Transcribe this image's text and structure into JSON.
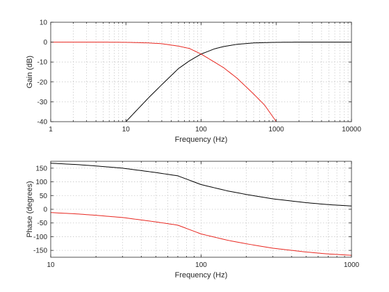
{
  "chart_data": [
    {
      "type": "line",
      "xscale": "log",
      "xlim": [
        1,
        10000
      ],
      "ylim": [
        -40,
        10
      ],
      "xlabel": "Frequency (Hz)",
      "ylabel": "Gain (dB)",
      "xticks": [
        1,
        10,
        100,
        1000,
        10000
      ],
      "xtick_labels": [
        "1",
        "10",
        "100",
        "1000",
        "10000"
      ],
      "yticks": [
        -40,
        -30,
        -20,
        -10,
        0,
        10
      ],
      "ytick_labels": [
        "-40",
        "-30",
        "-20",
        "-10",
        "0",
        "10"
      ],
      "grid": true,
      "series": [
        {
          "color": "#000000",
          "x": [
            10,
            20,
            30,
            50,
            70,
            100,
            150,
            200,
            300,
            500,
            1000,
            2000,
            5000,
            10000
          ],
          "values": [
            -40,
            -28,
            -21.4,
            -13.3,
            -9.4,
            -6.0,
            -3.4,
            -2.2,
            -1.1,
            -0.4,
            -0.1,
            0,
            0,
            0
          ]
        },
        {
          "color": "#e8261f",
          "x": [
            1,
            2,
            5,
            10,
            20,
            30,
            50,
            70,
            100,
            150,
            200,
            300,
            500,
            700,
            1000
          ],
          "values": [
            0,
            0,
            0,
            -0.1,
            -0.4,
            -0.8,
            -2.0,
            -3.2,
            -6.0,
            -10.0,
            -12.9,
            -18.1,
            -26.1,
            -31.7,
            -40
          ]
        }
      ]
    },
    {
      "type": "line",
      "xscale": "log",
      "xlim": [
        10,
        1000
      ],
      "ylim": [
        -175,
        175
      ],
      "xlabel": "Frequency (Hz)",
      "ylabel": "Phase (degrees)",
      "xticks": [
        10,
        100,
        1000
      ],
      "xtick_labels": [
        "10",
        "100",
        "1000"
      ],
      "yticks": [
        -150,
        -100,
        -50,
        0,
        50,
        100,
        150
      ],
      "ytick_labels": [
        "-150",
        "-100",
        "-50",
        "0",
        "50",
        "100",
        "150"
      ],
      "grid": true,
      "series": [
        {
          "color": "#000000",
          "x": [
            10,
            15,
            20,
            30,
            40,
            50,
            70,
            100,
            150,
            200,
            300,
            500,
            700,
            1000
          ],
          "values": [
            168,
            163,
            158,
            150,
            141,
            134,
            122,
            90,
            67,
            54,
            38,
            24,
            17,
            12
          ]
        },
        {
          "color": "#e8261f",
          "x": [
            10,
            15,
            20,
            30,
            40,
            50,
            70,
            100,
            150,
            200,
            300,
            500,
            700,
            1000
          ],
          "values": [
            -12,
            -17,
            -22,
            -30,
            -39,
            -46,
            -58,
            -90,
            -113,
            -126,
            -142,
            -156,
            -163,
            -168
          ]
        }
      ]
    }
  ]
}
